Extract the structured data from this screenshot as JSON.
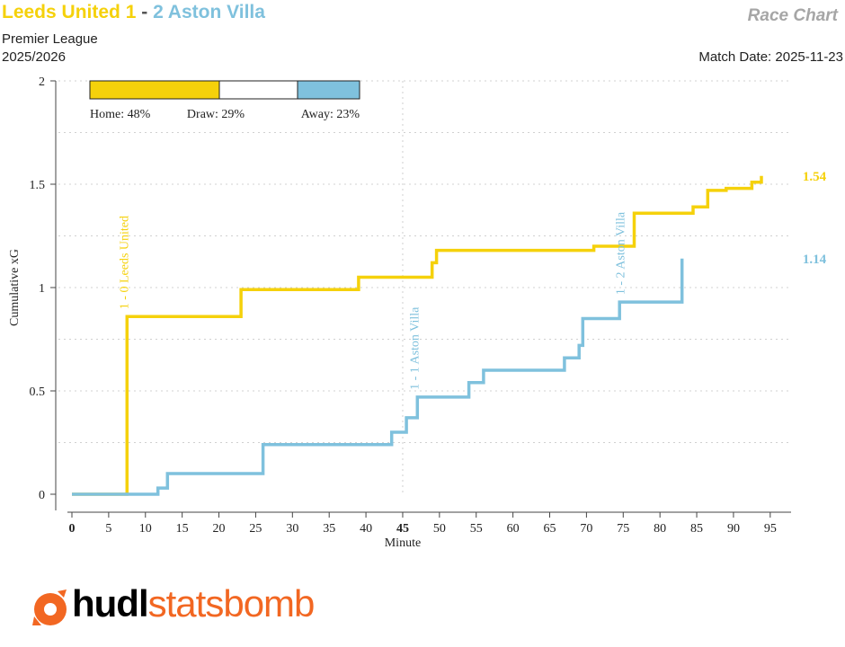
{
  "header": {
    "home_label": "Leeds United 1",
    "separator": "-",
    "away_label": "2 Aston Villa",
    "chart_title": "Race Chart",
    "competition": "Premier League",
    "season": "2025/2026",
    "match_date": "Match Date: 2025-11-23"
  },
  "colors": {
    "home": "#f5d10b",
    "away": "#7fc1dd",
    "draw": "#ffffff",
    "logo_orange": "#f26722"
  },
  "logo": {
    "part1": "hudl",
    "part2": "statsbomb",
    "icon": "statsbomb-logo-icon"
  },
  "chart_data": {
    "type": "line",
    "style": "step",
    "xlabel": "Minute",
    "ylabel": "Cumulative xG",
    "xlim": [
      0,
      96
    ],
    "ylim": [
      0,
      2
    ],
    "x_ticks": [
      0,
      5,
      10,
      15,
      20,
      25,
      30,
      35,
      40,
      45,
      50,
      55,
      60,
      65,
      70,
      75,
      80,
      85,
      90,
      95
    ],
    "y_ticks": [
      0,
      0.5,
      1,
      1.5,
      2
    ],
    "y_tick_labels": [
      "0",
      "0.5",
      "1",
      "1.5",
      "2"
    ],
    "bold_x_ticks": [
      0,
      45
    ],
    "grid": true,
    "halftime_line": 45,
    "series": [
      {
        "side": "home",
        "final_label": "1.54",
        "points": [
          [
            0,
            0
          ],
          [
            7.5,
            0
          ],
          [
            7.5,
            0.86
          ],
          [
            23,
            0.86
          ],
          [
            23,
            0.99
          ],
          [
            39,
            0.99
          ],
          [
            39,
            1.05
          ],
          [
            49,
            1.05
          ],
          [
            49,
            1.12
          ],
          [
            49.6,
            1.12
          ],
          [
            49.6,
            1.18
          ],
          [
            71,
            1.18
          ],
          [
            71,
            1.2
          ],
          [
            76.5,
            1.2
          ],
          [
            76.5,
            1.36
          ],
          [
            84.5,
            1.36
          ],
          [
            84.5,
            1.39
          ],
          [
            86.5,
            1.39
          ],
          [
            86.5,
            1.47
          ],
          [
            89,
            1.47
          ],
          [
            89,
            1.48
          ],
          [
            92.5,
            1.48
          ],
          [
            92.5,
            1.51
          ],
          [
            93.8,
            1.51
          ],
          [
            93.8,
            1.54
          ]
        ]
      },
      {
        "side": "away",
        "final_label": "1.14",
        "points": [
          [
            0,
            0
          ],
          [
            11.7,
            0
          ],
          [
            11.7,
            0.03
          ],
          [
            13,
            0.03
          ],
          [
            13,
            0.1
          ],
          [
            26,
            0.1
          ],
          [
            26,
            0.24
          ],
          [
            43.5,
            0.24
          ],
          [
            43.5,
            0.3
          ],
          [
            45.5,
            0.3
          ],
          [
            45.5,
            0.37
          ],
          [
            47,
            0.37
          ],
          [
            47,
            0.47
          ],
          [
            54,
            0.47
          ],
          [
            54,
            0.54
          ],
          [
            56,
            0.54
          ],
          [
            56,
            0.6
          ],
          [
            67,
            0.6
          ],
          [
            67,
            0.66
          ],
          [
            69,
            0.66
          ],
          [
            69,
            0.72
          ],
          [
            69.5,
            0.72
          ],
          [
            69.5,
            0.85
          ],
          [
            74.5,
            0.85
          ],
          [
            74.5,
            0.93
          ],
          [
            83,
            0.93
          ],
          [
            83,
            1.14
          ]
        ]
      }
    ],
    "goal_annotations": [
      {
        "minute": 7.5,
        "label": "1 - 0 Leeds United",
        "side": "home"
      },
      {
        "minute": 47,
        "label": "1 - 1 Aston Villa",
        "side": "away"
      },
      {
        "minute": 75,
        "label": "1 - 2 Aston Villa",
        "side": "away"
      }
    ],
    "win_probability": {
      "home_label": "Home: 48%",
      "draw_label": "Draw: 29%",
      "away_label": "Away: 23%",
      "home": 0.48,
      "draw": 0.29,
      "away": 0.23
    }
  }
}
